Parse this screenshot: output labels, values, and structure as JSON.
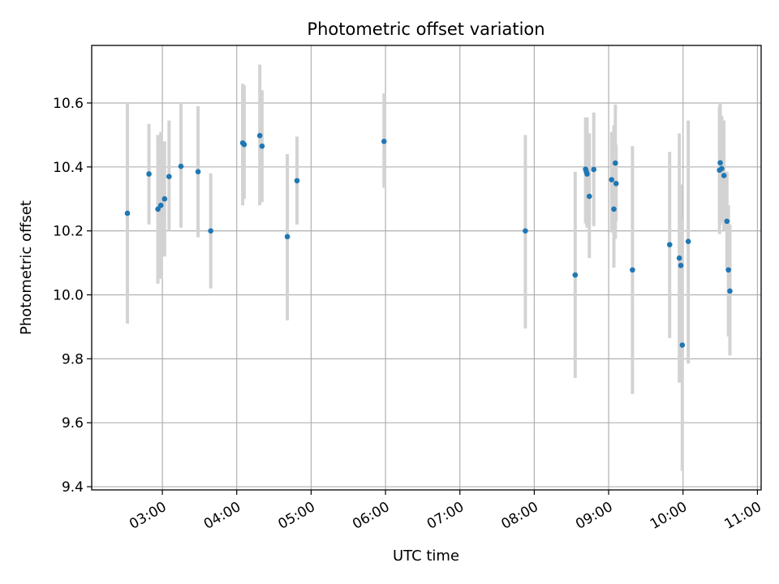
{
  "chart_data": {
    "type": "scatter",
    "title": "Photometric offset variation",
    "xlabel": "UTC time",
    "ylabel": "Photometric offset",
    "x_unit": "hours UTC",
    "xlim": [
      2.05,
      11.05
    ],
    "ylim": [
      9.39,
      10.78
    ],
    "grid": true,
    "xticks": [
      {
        "value": 3,
        "label": "03:00"
      },
      {
        "value": 4,
        "label": "04:00"
      },
      {
        "value": 5,
        "label": "05:00"
      },
      {
        "value": 6,
        "label": "06:00"
      },
      {
        "value": 7,
        "label": "07:00"
      },
      {
        "value": 8,
        "label": "08:00"
      },
      {
        "value": 9,
        "label": "09:00"
      },
      {
        "value": 10,
        "label": "10:00"
      },
      {
        "value": 11,
        "label": "11:00"
      }
    ],
    "yticks": [
      {
        "value": 9.4,
        "label": "9.4"
      },
      {
        "value": 9.6,
        "label": "9.6"
      },
      {
        "value": 9.8,
        "label": "9.8"
      },
      {
        "value": 10.0,
        "label": "10.0"
      },
      {
        "value": 10.2,
        "label": "10.2"
      },
      {
        "value": 10.4,
        "label": "10.4"
      },
      {
        "value": 10.6,
        "label": "10.6"
      }
    ],
    "colors": {
      "point": "#1f77b4",
      "errorbar": "#d3d3d3",
      "grid": "#b0b0b0"
    },
    "points": [
      {
        "x": 2.53,
        "y": 10.255,
        "ylo": 9.91,
        "yhi": 10.6
      },
      {
        "x": 2.82,
        "y": 10.378,
        "ylo": 10.22,
        "yhi": 10.535
      },
      {
        "x": 2.94,
        "y": 10.268,
        "ylo": 10.035,
        "yhi": 10.5
      },
      {
        "x": 2.98,
        "y": 10.28,
        "ylo": 10.05,
        "yhi": 10.51
      },
      {
        "x": 3.03,
        "y": 10.3,
        "ylo": 10.12,
        "yhi": 10.48
      },
      {
        "x": 3.09,
        "y": 10.37,
        "ylo": 10.2,
        "yhi": 10.545
      },
      {
        "x": 3.25,
        "y": 10.402,
        "ylo": 10.21,
        "yhi": 10.6
      },
      {
        "x": 3.48,
        "y": 10.385,
        "ylo": 10.18,
        "yhi": 10.59
      },
      {
        "x": 3.65,
        "y": 10.2,
        "ylo": 10.02,
        "yhi": 10.38
      },
      {
        "x": 4.08,
        "y": 10.475,
        "ylo": 10.28,
        "yhi": 10.66
      },
      {
        "x": 4.1,
        "y": 10.47,
        "ylo": 10.3,
        "yhi": 10.655
      },
      {
        "x": 4.31,
        "y": 10.498,
        "ylo": 10.28,
        "yhi": 10.72
      },
      {
        "x": 4.34,
        "y": 10.465,
        "ylo": 10.29,
        "yhi": 10.64
      },
      {
        "x": 4.68,
        "y": 10.182,
        "ylo": 9.92,
        "yhi": 10.44
      },
      {
        "x": 4.81,
        "y": 10.357,
        "ylo": 10.22,
        "yhi": 10.495
      },
      {
        "x": 5.98,
        "y": 10.48,
        "ylo": 10.335,
        "yhi": 10.63
      },
      {
        "x": 7.88,
        "y": 10.2,
        "ylo": 9.895,
        "yhi": 10.5
      },
      {
        "x": 8.55,
        "y": 10.062,
        "ylo": 9.74,
        "yhi": 10.385
      },
      {
        "x": 8.69,
        "y": 10.393,
        "ylo": 10.225,
        "yhi": 10.555
      },
      {
        "x": 8.7,
        "y": 10.385,
        "ylo": 10.22,
        "yhi": 10.545
      },
      {
        "x": 8.71,
        "y": 10.378,
        "ylo": 10.21,
        "yhi": 10.555
      },
      {
        "x": 8.74,
        "y": 10.308,
        "ylo": 10.115,
        "yhi": 10.505
      },
      {
        "x": 8.8,
        "y": 10.392,
        "ylo": 10.215,
        "yhi": 10.57
      },
      {
        "x": 9.04,
        "y": 10.36,
        "ylo": 10.195,
        "yhi": 10.51
      },
      {
        "x": 9.07,
        "y": 10.268,
        "ylo": 10.085,
        "yhi": 10.53
      },
      {
        "x": 9.09,
        "y": 10.412,
        "ylo": 10.175,
        "yhi": 10.595
      },
      {
        "x": 9.1,
        "y": 10.348,
        "ylo": 10.23,
        "yhi": 10.47
      },
      {
        "x": 9.32,
        "y": 10.078,
        "ylo": 9.69,
        "yhi": 10.465
      },
      {
        "x": 9.82,
        "y": 10.157,
        "ylo": 9.865,
        "yhi": 10.447
      },
      {
        "x": 9.95,
        "y": 10.115,
        "ylo": 9.725,
        "yhi": 10.505
      },
      {
        "x": 9.97,
        "y": 10.092,
        "ylo": 9.84,
        "yhi": 10.345
      },
      {
        "x": 9.99,
        "y": 9.843,
        "ylo": 9.45,
        "yhi": 10.24
      },
      {
        "x": 10.07,
        "y": 10.167,
        "ylo": 9.785,
        "yhi": 10.545
      },
      {
        "x": 10.49,
        "y": 10.39,
        "ylo": 10.19,
        "yhi": 10.59
      },
      {
        "x": 10.5,
        "y": 10.413,
        "ylo": 10.22,
        "yhi": 10.6
      },
      {
        "x": 10.52,
        "y": 10.395,
        "ylo": 10.23,
        "yhi": 10.56
      },
      {
        "x": 10.55,
        "y": 10.373,
        "ylo": 10.2,
        "yhi": 10.545
      },
      {
        "x": 10.59,
        "y": 10.23,
        "ylo": 10.08,
        "yhi": 10.385
      },
      {
        "x": 10.61,
        "y": 10.078,
        "ylo": 9.87,
        "yhi": 10.28
      },
      {
        "x": 10.63,
        "y": 10.012,
        "ylo": 9.81,
        "yhi": 10.22
      }
    ]
  }
}
